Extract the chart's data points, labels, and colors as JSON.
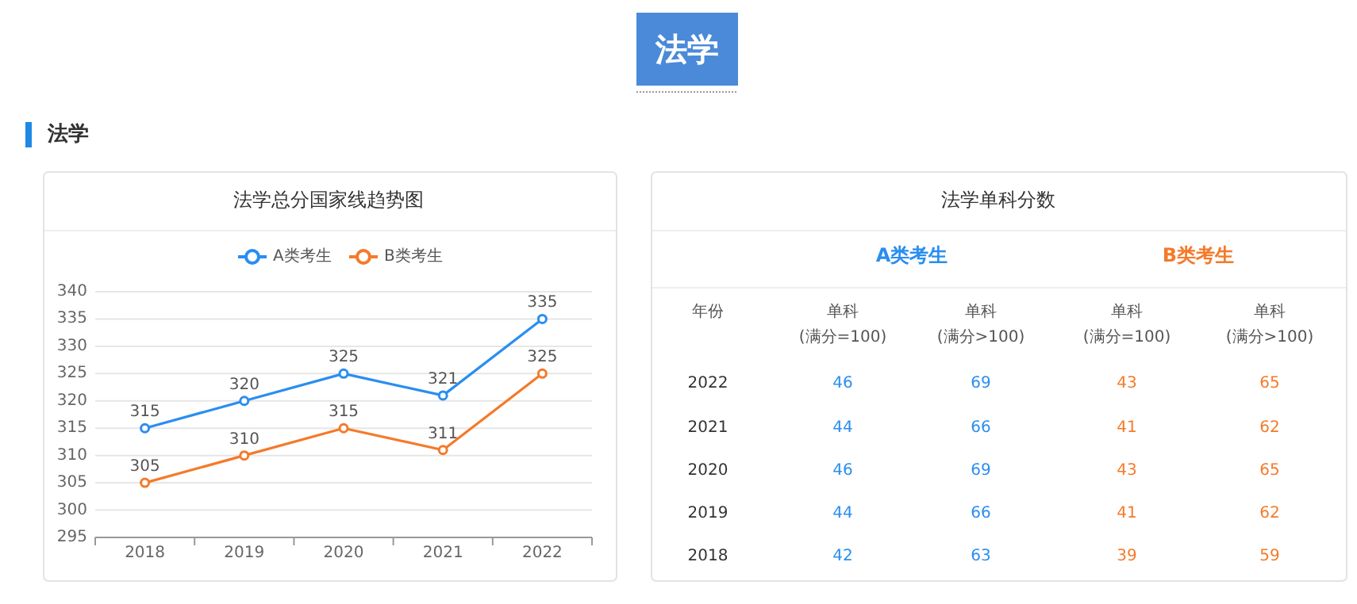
{
  "chart_data": [
    {
      "type": "line",
      "title": "法学总分国家线趋势图",
      "annotations": [
        "法学",
        "法学"
      ],
      "categories": [
        "2018",
        "2019",
        "2020",
        "2021",
        "2022"
      ],
      "series": [
        {
          "name": "A类考生",
          "color": "#2a8ef0",
          "values": [
            315,
            320,
            325,
            321,
            335
          ]
        },
        {
          "name": "B类考生",
          "color": "#f47a2a",
          "values": [
            305,
            310,
            315,
            311,
            325
          ]
        }
      ],
      "ylim": [
        295,
        340
      ],
      "yticks": [
        295,
        300,
        305,
        310,
        315,
        320,
        325,
        330,
        335,
        340
      ],
      "grid": "y",
      "legend": "top",
      "marker": "circle",
      "data_labels": true
    },
    {
      "type": "heatmap",
      "title": "法学单科分数",
      "annotations": [
        "A类考生",
        "B类考生",
        "年份"
      ],
      "categories": [
        "单科 (满分=100)",
        "单科 (满分>100)",
        "单科 (满分=100)",
        "单科 (满分>100)"
      ],
      "colors": [
        "#2a8ef0",
        "#2a8ef0",
        "#f47a2a",
        "#f47a2a"
      ],
      "y_categories": [
        "2022",
        "2021",
        "2020",
        "2019",
        "2018"
      ],
      "cells": [
        [
          46,
          69,
          43,
          65
        ],
        [
          44,
          66,
          41,
          62
        ],
        [
          46,
          69,
          43,
          65
        ],
        [
          44,
          66,
          41,
          62
        ],
        [
          42,
          63,
          39,
          59
        ]
      ],
      "data_labels": true
    }
  ]
}
